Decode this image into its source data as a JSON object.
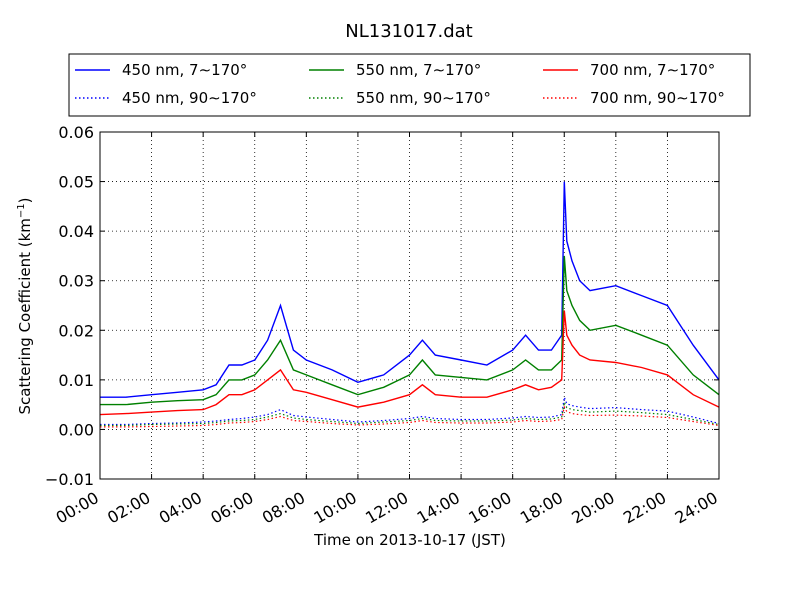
{
  "chart_data": {
    "type": "line",
    "title": "NL131017.dat",
    "xlabel": "Time on 2013-10-17 (JST)",
    "ylabel": "Scattering Coefficient (km",
    "ylabel_sup": "−1",
    "ylabel_end": ")",
    "xlim": [
      0,
      24
    ],
    "ylim": [
      -0.01,
      0.06
    ],
    "grid": true,
    "legend_position": "top",
    "x_ticks": [
      0,
      2,
      4,
      6,
      8,
      10,
      12,
      14,
      16,
      18,
      20,
      22,
      24
    ],
    "x_tick_labels": [
      "00:00",
      "02:00",
      "04:00",
      "06:00",
      "08:00",
      "10:00",
      "12:00",
      "14:00",
      "16:00",
      "18:00",
      "20:00",
      "22:00",
      "24:00"
    ],
    "y_ticks": [
      -0.01,
      0.0,
      0.01,
      0.02,
      0.03,
      0.04,
      0.05,
      0.06
    ],
    "y_tick_labels": [
      "−0.01",
      "0.00",
      "0.01",
      "0.02",
      "0.03",
      "0.04",
      "0.05",
      "0.06"
    ],
    "x": [
      0,
      1,
      2,
      3,
      4,
      4.5,
      5,
      5.5,
      6,
      6.5,
      7,
      7.5,
      8,
      9,
      10,
      11,
      12,
      12.5,
      13,
      14,
      15,
      16,
      16.5,
      17,
      17.5,
      17.9,
      18.0,
      18.1,
      18.3,
      18.6,
      19,
      20,
      21,
      22,
      23,
      24
    ],
    "series": [
      {
        "name": "450 nm, 7∼170°",
        "color": "#0000ff",
        "style": "solid",
        "values": [
          0.0065,
          0.0065,
          0.007,
          0.0075,
          0.008,
          0.009,
          0.013,
          0.013,
          0.014,
          0.018,
          0.025,
          0.016,
          0.014,
          0.012,
          0.0095,
          0.011,
          0.015,
          0.018,
          0.015,
          0.014,
          0.013,
          0.016,
          0.019,
          0.016,
          0.016,
          0.019,
          0.05,
          0.038,
          0.034,
          0.03,
          0.028,
          0.029,
          0.027,
          0.025,
          0.017,
          0.01
        ]
      },
      {
        "name": "550 nm, 7∼170°",
        "color": "#008000",
        "style": "solid",
        "values": [
          0.005,
          0.005,
          0.0055,
          0.0058,
          0.006,
          0.007,
          0.01,
          0.01,
          0.011,
          0.014,
          0.018,
          0.012,
          0.011,
          0.009,
          0.007,
          0.0085,
          0.011,
          0.014,
          0.011,
          0.0105,
          0.01,
          0.012,
          0.014,
          0.012,
          0.012,
          0.014,
          0.035,
          0.028,
          0.025,
          0.022,
          0.02,
          0.021,
          0.019,
          0.017,
          0.011,
          0.007
        ]
      },
      {
        "name": "700 nm, 7∼170°",
        "color": "#ff0000",
        "style": "solid",
        "values": [
          0.003,
          0.0032,
          0.0035,
          0.0038,
          0.004,
          0.005,
          0.007,
          0.007,
          0.008,
          0.01,
          0.012,
          0.008,
          0.0075,
          0.006,
          0.0045,
          0.0055,
          0.007,
          0.009,
          0.007,
          0.0065,
          0.0065,
          0.008,
          0.009,
          0.008,
          0.0085,
          0.01,
          0.024,
          0.019,
          0.017,
          0.015,
          0.014,
          0.0135,
          0.0125,
          0.011,
          0.007,
          0.0045
        ]
      },
      {
        "name": "450 nm, 90∼170°",
        "color": "#0000ff",
        "style": "dotted",
        "values": [
          0.001,
          0.001,
          0.0012,
          0.0013,
          0.0015,
          0.0017,
          0.002,
          0.0022,
          0.0025,
          0.003,
          0.004,
          0.0028,
          0.0025,
          0.002,
          0.0015,
          0.0018,
          0.0022,
          0.0026,
          0.0022,
          0.002,
          0.002,
          0.0023,
          0.0026,
          0.0024,
          0.0025,
          0.003,
          0.0065,
          0.0052,
          0.0048,
          0.0045,
          0.0042,
          0.0044,
          0.004,
          0.0037,
          0.0025,
          0.0012
        ]
      },
      {
        "name": "550 nm, 90∼170°",
        "color": "#008000",
        "style": "dotted",
        "values": [
          0.0008,
          0.0008,
          0.001,
          0.0011,
          0.0012,
          0.0014,
          0.0017,
          0.0018,
          0.002,
          0.0025,
          0.0032,
          0.0023,
          0.002,
          0.0016,
          0.0012,
          0.0015,
          0.0018,
          0.0022,
          0.0018,
          0.0017,
          0.0017,
          0.0019,
          0.0022,
          0.002,
          0.0021,
          0.0025,
          0.0055,
          0.0044,
          0.004,
          0.0038,
          0.0035,
          0.0037,
          0.0034,
          0.003,
          0.002,
          0.001
        ]
      },
      {
        "name": "700 nm, 90∼170°",
        "color": "#ff0000",
        "style": "dotted",
        "values": [
          0.0005,
          0.0005,
          0.0006,
          0.0007,
          0.0008,
          0.001,
          0.0013,
          0.0014,
          0.0016,
          0.002,
          0.0026,
          0.0018,
          0.0016,
          0.0012,
          0.0009,
          0.0011,
          0.0014,
          0.0018,
          0.0014,
          0.0013,
          0.0013,
          0.0015,
          0.0018,
          0.0016,
          0.0017,
          0.002,
          0.0045,
          0.0036,
          0.0032,
          0.003,
          0.0028,
          0.0029,
          0.0027,
          0.0024,
          0.0016,
          0.0008
        ]
      }
    ]
  }
}
